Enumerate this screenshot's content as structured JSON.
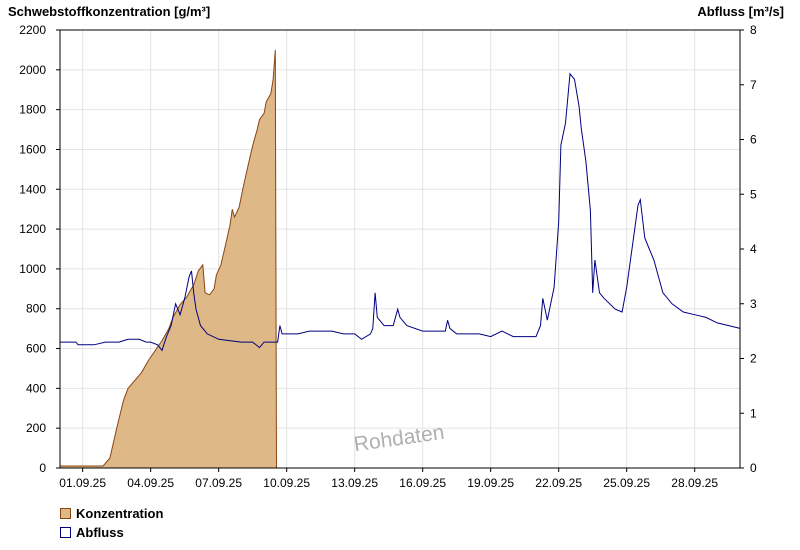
{
  "chart_data": {
    "type": "area",
    "left_axis_title": "Schwebstoffkonzentration [g/m³]",
    "right_axis_title": "Abfluss [m³/s]",
    "y_left_lim": [
      0,
      2200
    ],
    "y_left_ticks": [
      "0",
      "200",
      "400",
      "600",
      "800",
      "1000",
      "1200",
      "1400",
      "1600",
      "1800",
      "2000",
      "2200"
    ],
    "y_right_lim": [
      0,
      8
    ],
    "y_right_ticks": [
      "0",
      "1",
      "2",
      "3",
      "4",
      "5",
      "6",
      "7",
      "8"
    ],
    "x_lim": [
      0,
      30
    ],
    "x_ticks": [
      {
        "day": 1,
        "label": "01.09.25"
      },
      {
        "day": 4,
        "label": "04.09.25"
      },
      {
        "day": 7,
        "label": "07.09.25"
      },
      {
        "day": 10,
        "label": "10.09.25"
      },
      {
        "day": 13,
        "label": "13.09.25"
      },
      {
        "day": 16,
        "label": "16.09.25"
      },
      {
        "day": 19,
        "label": "19.09.25"
      },
      {
        "day": 22,
        "label": "22.09.25"
      },
      {
        "day": 25,
        "label": "25.09.25"
      },
      {
        "day": 28,
        "label": "28.09.25"
      }
    ],
    "grid": true,
    "watermark": "Rohdaten",
    "series": [
      {
        "name": "Konzentration",
        "axis": "left",
        "color": "#deb887",
        "stroke": "#8b4513",
        "points": [
          [
            0.0,
            10
          ],
          [
            1.6,
            10
          ],
          [
            1.9,
            10
          ],
          [
            2.2,
            50
          ],
          [
            2.5,
            200
          ],
          [
            2.8,
            340
          ],
          [
            3.0,
            400
          ],
          [
            3.3,
            440
          ],
          [
            3.6,
            480
          ],
          [
            3.9,
            540
          ],
          [
            4.2,
            590
          ],
          [
            4.5,
            640
          ],
          [
            4.8,
            700
          ],
          [
            5.0,
            760
          ],
          [
            5.3,
            820
          ],
          [
            5.6,
            860
          ],
          [
            5.9,
            920
          ],
          [
            6.1,
            990
          ],
          [
            6.3,
            1020
          ],
          [
            6.4,
            880
          ],
          [
            6.6,
            870
          ],
          [
            6.8,
            900
          ],
          [
            6.9,
            970
          ],
          [
            7.1,
            1020
          ],
          [
            7.3,
            1120
          ],
          [
            7.5,
            1220
          ],
          [
            7.6,
            1300
          ],
          [
            7.7,
            1260
          ],
          [
            7.9,
            1310
          ],
          [
            8.1,
            1420
          ],
          [
            8.3,
            1520
          ],
          [
            8.5,
            1620
          ],
          [
            8.7,
            1700
          ],
          [
            8.8,
            1750
          ],
          [
            9.0,
            1780
          ],
          [
            9.1,
            1840
          ],
          [
            9.3,
            1880
          ],
          [
            9.4,
            1950
          ],
          [
            9.5,
            2100
          ],
          [
            9.55,
            0
          ]
        ]
      },
      {
        "name": "Abfluss",
        "axis": "right",
        "color": "#000080",
        "points": [
          [
            0.0,
            2.3
          ],
          [
            0.7,
            2.3
          ],
          [
            0.8,
            2.25
          ],
          [
            1.5,
            2.25
          ],
          [
            2.0,
            2.3
          ],
          [
            2.6,
            2.3
          ],
          [
            3.0,
            2.35
          ],
          [
            3.5,
            2.35
          ],
          [
            3.8,
            2.3
          ],
          [
            4.0,
            2.3
          ],
          [
            4.3,
            2.25
          ],
          [
            4.5,
            2.15
          ],
          [
            4.7,
            2.4
          ],
          [
            4.9,
            2.6
          ],
          [
            5.1,
            3.0
          ],
          [
            5.3,
            2.8
          ],
          [
            5.5,
            3.1
          ],
          [
            5.7,
            3.5
          ],
          [
            5.8,
            3.6
          ],
          [
            5.9,
            3.2
          ],
          [
            6.0,
            2.9
          ],
          [
            6.2,
            2.6
          ],
          [
            6.5,
            2.45
          ],
          [
            7.0,
            2.35
          ],
          [
            8.0,
            2.3
          ],
          [
            8.5,
            2.3
          ],
          [
            8.8,
            2.2
          ],
          [
            9.0,
            2.3
          ],
          [
            9.6,
            2.3
          ],
          [
            9.7,
            2.6
          ],
          [
            9.8,
            2.45
          ],
          [
            10.5,
            2.45
          ],
          [
            11.0,
            2.5
          ],
          [
            12.0,
            2.5
          ],
          [
            12.5,
            2.45
          ],
          [
            13.0,
            2.45
          ],
          [
            13.3,
            2.35
          ],
          [
            13.7,
            2.45
          ],
          [
            13.8,
            2.55
          ],
          [
            13.9,
            3.2
          ],
          [
            14.0,
            2.75
          ],
          [
            14.3,
            2.6
          ],
          [
            14.7,
            2.6
          ],
          [
            14.9,
            2.9
          ],
          [
            15.0,
            2.75
          ],
          [
            15.3,
            2.6
          ],
          [
            16.0,
            2.5
          ],
          [
            16.5,
            2.5
          ],
          [
            17.0,
            2.5
          ],
          [
            17.1,
            2.7
          ],
          [
            17.2,
            2.55
          ],
          [
            17.5,
            2.45
          ],
          [
            18.5,
            2.45
          ],
          [
            19.0,
            2.4
          ],
          [
            19.5,
            2.5
          ],
          [
            20.0,
            2.4
          ],
          [
            21.0,
            2.4
          ],
          [
            21.2,
            2.6
          ],
          [
            21.3,
            3.1
          ],
          [
            21.5,
            2.7
          ],
          [
            21.8,
            3.3
          ],
          [
            22.0,
            4.5
          ],
          [
            22.1,
            5.9
          ],
          [
            22.3,
            6.3
          ],
          [
            22.5,
            7.2
          ],
          [
            22.7,
            7.1
          ],
          [
            22.9,
            6.6
          ],
          [
            23.0,
            6.2
          ],
          [
            23.2,
            5.6
          ],
          [
            23.4,
            4.7
          ],
          [
            23.5,
            3.2
          ],
          [
            23.6,
            3.8
          ],
          [
            23.8,
            3.2
          ],
          [
            24.0,
            3.1
          ],
          [
            24.5,
            2.9
          ],
          [
            24.8,
            2.85
          ],
          [
            25.0,
            3.3
          ],
          [
            25.3,
            4.2
          ],
          [
            25.5,
            4.8
          ],
          [
            25.6,
            4.9
          ],
          [
            25.8,
            4.2
          ],
          [
            26.0,
            4.0
          ],
          [
            26.2,
            3.8
          ],
          [
            26.4,
            3.5
          ],
          [
            26.6,
            3.2
          ],
          [
            27.0,
            3.0
          ],
          [
            27.5,
            2.85
          ],
          [
            28.0,
            2.8
          ],
          [
            28.5,
            2.75
          ],
          [
            29.0,
            2.65
          ],
          [
            29.5,
            2.6
          ],
          [
            30.0,
            2.55
          ]
        ]
      }
    ]
  },
  "legend": {
    "konzentration": {
      "label": "Konzentration",
      "fill": "#deb887",
      "border": "#8b4513"
    },
    "abfluss": {
      "label": "Abfluss",
      "fill": "#ffffff",
      "border": "#000080"
    }
  }
}
